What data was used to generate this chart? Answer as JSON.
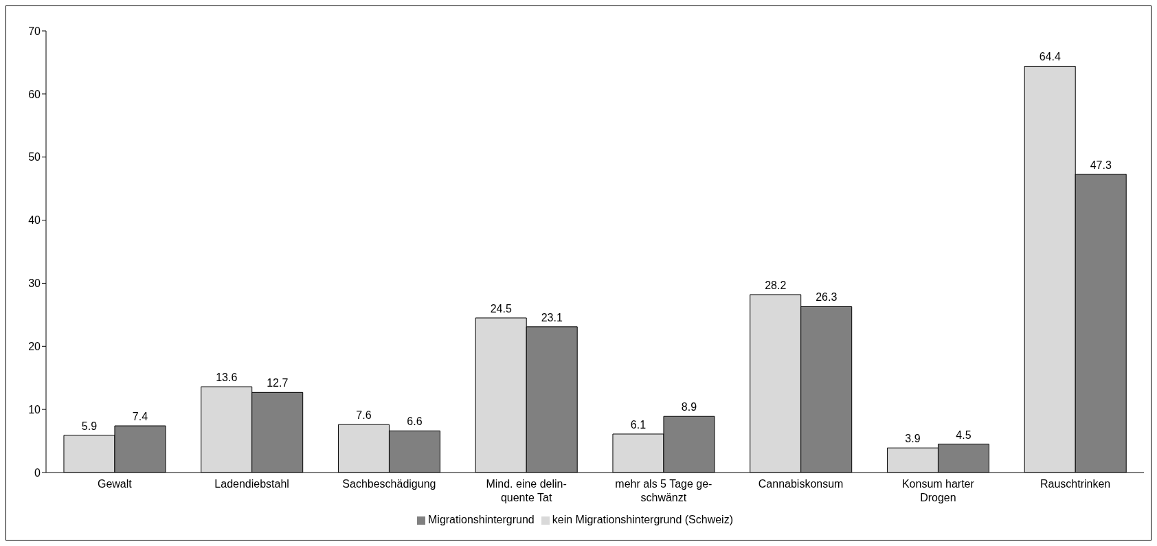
{
  "chart_data": {
    "type": "bar",
    "categories": [
      "Gewalt",
      "Ladendiebstahl",
      "Sachbeschädigung",
      "Mind. eine delin-\nquente Tat",
      "mehr als 5 Tage ge-\nschwänzt",
      "Cannabiskonsum",
      "Konsum harter\nDrogen",
      "Rauschtrinken"
    ],
    "series": [
      {
        "name": "kein Migrationshintergrund (Schweiz)",
        "color": "#d9d9d9",
        "values": [
          5.9,
          13.6,
          7.6,
          24.5,
          6.1,
          28.2,
          3.9,
          64.4
        ]
      },
      {
        "name": "Migrationshintergrund",
        "color": "#808080",
        "values": [
          7.4,
          12.7,
          6.6,
          23.1,
          8.9,
          26.3,
          4.5,
          47.3
        ]
      }
    ],
    "ylim": [
      0,
      70
    ],
    "yticks": [
      0,
      10,
      20,
      30,
      40,
      50,
      60,
      70
    ],
    "grid": false,
    "legend": "bottom",
    "data_labels": true
  }
}
